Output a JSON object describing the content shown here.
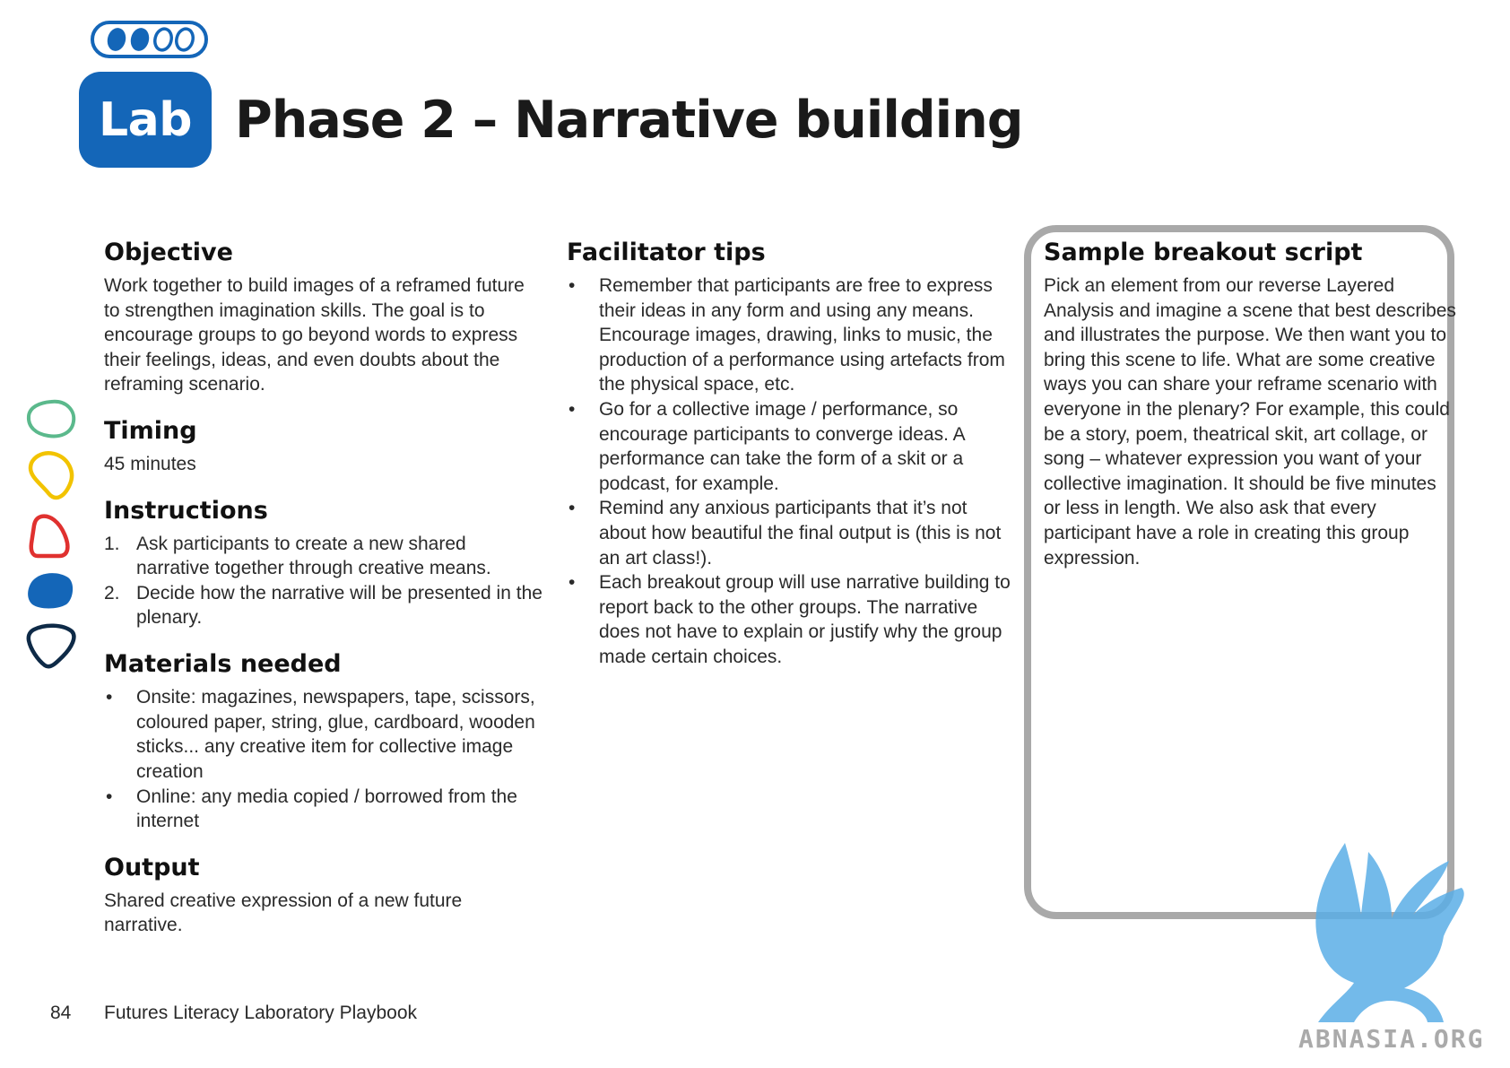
{
  "header": {
    "badge_label": "Lab",
    "title": "Phase 2 – Narrative building",
    "progress": {
      "current": 2,
      "total": 4
    }
  },
  "objective": {
    "heading": "Objective",
    "text": "Work together to build images of a reframed future to strengthen imagination skills. The goal is to encourage groups to go beyond words to express their feelings, ideas, and even doubts about the reframing scenario."
  },
  "timing": {
    "heading": "Timing",
    "text": "45 minutes"
  },
  "instructions": {
    "heading": "Instructions",
    "items": [
      {
        "num": "1.",
        "text": "Ask participants to create a new shared narrative together through creative means."
      },
      {
        "num": "2.",
        "text": "Decide how the narrative will be presented in the plenary."
      }
    ]
  },
  "materials": {
    "heading": "Materials needed",
    "items": [
      "Onsite: magazines, newspapers, tape, scissors, coloured paper, string, glue, cardboard, wooden sticks... any creative item for collective image creation",
      "Online: any media copied / borrowed from the internet"
    ]
  },
  "output": {
    "heading": "Output",
    "text": "Shared creative expression of a new future narrative."
  },
  "facilitator_tips": {
    "heading": "Facilitator tips",
    "items": [
      "Remember that participants are free to express their ideas in any form and using any means. Encourage images, drawing, links to music, the production of a performance using artefacts from the physical space, etc.",
      "Go for a collective image / performance, so encourage participants to converge ideas. A performance can take the form of a skit or a podcast, for example.",
      "Remind any anxious participants that it’s not about how beautiful the final output is (this is not an art class!).",
      "Each breakout group will use narrative building to report back to the other groups. The narrative does not have to explain or justify why the group made certain choices."
    ]
  },
  "sample_script": {
    "heading": "Sample breakout script",
    "text": "Pick an element from our reverse Layered Analysis and imagine a scene that best describes and illustrates the purpose. We then want you to bring this scene to life. What are some creative ways you can share your reframe scenario with everyone in the plenary? For example, this could be a story, poem, theatrical skit, art collage, or song – whatever expression you want of your collective imagination. It should be five minutes or less in length. We also ask that every participant have a role in creating this group expression."
  },
  "footer": {
    "page_number": "84",
    "title": "Futures Literacy Laboratory Playbook"
  },
  "watermark": {
    "text": "ABNASIA.ORG"
  },
  "colors": {
    "brand_blue": "#1466b8",
    "shape_green": "#5bb98c",
    "shape_yellow": "#f2c300",
    "shape_red": "#e0312f",
    "shape_blue": "#1466b8",
    "shape_navy": "#0e2a47",
    "box_border": "#a9a9a9"
  },
  "icons": [
    "progress-pill-icon",
    "green-blob-icon",
    "yellow-blob-icon",
    "red-blob-icon",
    "blue-blob-icon",
    "navy-blob-icon",
    "griffin-watermark-icon"
  ]
}
